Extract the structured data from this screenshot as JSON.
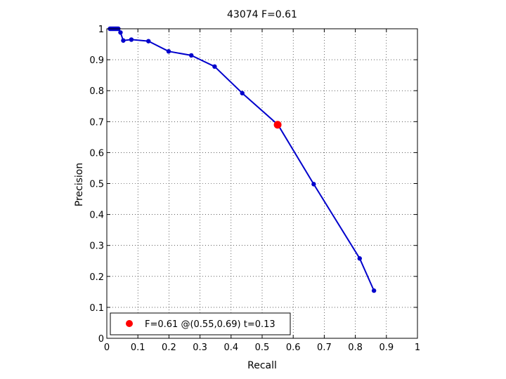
{
  "chart_data": {
    "type": "line",
    "title": "43074 F=0.61",
    "xlabel": "Recall",
    "ylabel": "Precision",
    "xlim": [
      0,
      1
    ],
    "ylim": [
      0,
      1
    ],
    "grid": true,
    "xticks": [
      "0",
      "0.1",
      "0.2",
      "0.3",
      "0.4",
      "0.5",
      "0.6",
      "0.7",
      "0.8",
      "0.9",
      "1"
    ],
    "yticks": [
      "0",
      "0.1",
      "0.2",
      "0.3",
      "0.4",
      "0.5",
      "0.6",
      "0.7",
      "0.8",
      "0.9",
      "1"
    ],
    "series": [
      {
        "color": "#0000cc",
        "x": [
          0.01,
          0.013,
          0.016,
          0.019,
          0.022,
          0.025,
          0.028,
          0.031,
          0.034,
          0.037,
          0.044,
          0.053,
          0.079,
          0.134,
          0.199,
          0.272,
          0.347,
          0.436,
          0.551,
          0.666,
          0.814,
          0.86
        ],
        "y": [
          1.0,
          1.0,
          1.0,
          1.0,
          1.0,
          1.0,
          1.0,
          1.0,
          1.0,
          1.0,
          0.988,
          0.962,
          0.965,
          0.96,
          0.927,
          0.914,
          0.878,
          0.792,
          0.69,
          0.498,
          0.258,
          0.154
        ]
      }
    ],
    "highlight": {
      "x": 0.55,
      "y": 0.69,
      "color": "#ff0000",
      "label": "F=0.61 @(0.55,0.69) t=0.13"
    },
    "legend": {
      "position": "bottom-left",
      "entries": [
        "F=0.61 @(0.55,0.69) t=0.13"
      ]
    }
  }
}
